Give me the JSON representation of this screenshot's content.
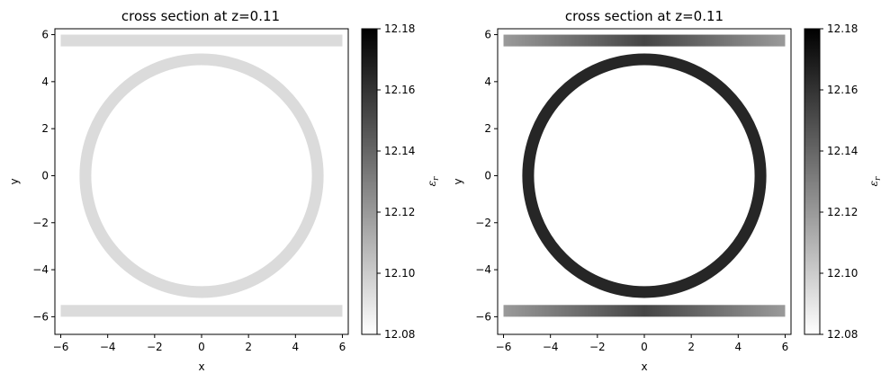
{
  "chart_data": [
    {
      "type": "heatmap",
      "title": "cross section at z=0.11",
      "xlabel": "x",
      "ylabel": "y",
      "xlim": [
        -6.25,
        6.25
      ],
      "ylim": [
        -6.75,
        6.25
      ],
      "xticks": [
        "−6",
        "−4",
        "−2",
        "0",
        "2",
        "4",
        "6"
      ],
      "yticks": [
        "6",
        "4",
        "2",
        "0",
        "−2",
        "−4",
        "−6"
      ],
      "colorbar": {
        "label": "ε_r",
        "range": [
          12.08,
          12.18
        ],
        "ticks": [
          "12.18",
          "12.16",
          "12.14",
          "12.12",
          "12.10",
          "12.08"
        ],
        "colormap": "gray_r"
      },
      "grid": false,
      "structures": [
        {
          "name": "ring",
          "center": [
            0,
            0
          ],
          "outer_radius": 5.2,
          "inner_radius": 4.7,
          "value": 12.094
        },
        {
          "name": "top-waveguide",
          "x_range": [
            -6,
            6
          ],
          "y_range": [
            5.5,
            6.0
          ],
          "value": 12.094
        },
        {
          "name": "bottom-waveguide",
          "x_range": [
            -6,
            6
          ],
          "y_range": [
            -6.0,
            -5.5
          ],
          "value": 12.094
        }
      ]
    },
    {
      "type": "heatmap",
      "title": "cross section at z=0.11",
      "xlabel": "x",
      "ylabel": "y",
      "xlim": [
        -6.25,
        6.25
      ],
      "ylim": [
        -6.75,
        6.25
      ],
      "xticks": [
        "−6",
        "−4",
        "−2",
        "0",
        "2",
        "4",
        "6"
      ],
      "yticks": [
        "6",
        "4",
        "2",
        "0",
        "−2",
        "−4",
        "−6"
      ],
      "colorbar": {
        "label": "ε_r",
        "range": [
          12.08,
          12.18
        ],
        "ticks": [
          "12.18",
          "12.16",
          "12.14",
          "12.12",
          "12.10",
          "12.08"
        ],
        "colormap": "gray_r"
      },
      "grid": false,
      "structures": [
        {
          "name": "ring",
          "center": [
            0,
            0
          ],
          "outer_radius": 5.2,
          "inner_radius": 4.7,
          "value": 12.165
        },
        {
          "name": "top-waveguide",
          "x_range": [
            -6,
            6
          ],
          "y_range": [
            5.5,
            6.0
          ],
          "value_edges": 12.118,
          "value_center": 12.165
        },
        {
          "name": "bottom-waveguide",
          "x_range": [
            -6,
            6
          ],
          "y_range": [
            -6.0,
            -5.5
          ],
          "value_edges": 12.118,
          "value_center": 12.165
        }
      ]
    }
  ]
}
